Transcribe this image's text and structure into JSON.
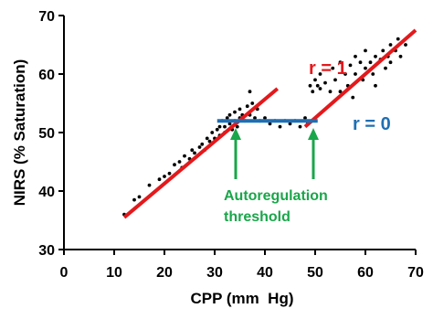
{
  "chart_data": {
    "type": "scatter",
    "x_label": "CPP (mm  Hg)",
    "y_label": "NIRS (% Saturation)",
    "xlim": [
      0,
      70
    ],
    "ylim": [
      30,
      70
    ],
    "xticks": [
      0,
      10,
      20,
      30,
      40,
      50,
      60,
      70
    ],
    "yticks": [
      30,
      40,
      50,
      60,
      70
    ],
    "grid": false,
    "series": [
      {
        "type": "scatter",
        "color": "#000000",
        "x": [
          12,
          14,
          15,
          17,
          19,
          20,
          21,
          22,
          23,
          23.5,
          24,
          25,
          25.5,
          26,
          27,
          27.5,
          28,
          28.5,
          29,
          29.5,
          30,
          30.5,
          31,
          31,
          31.5,
          32,
          32,
          32.5,
          33,
          33,
          33.5,
          34,
          34,
          34.5,
          35,
          35,
          35.5,
          36,
          36.5,
          37,
          37,
          37.5,
          38,
          38.5,
          39,
          40,
          41,
          42,
          43,
          44,
          45,
          46,
          47,
          48,
          48.5,
          49,
          49.5,
          50,
          50.5,
          51,
          51,
          52,
          53,
          53.5,
          54,
          55,
          55,
          56,
          56.5,
          57,
          57.5,
          58,
          58,
          59,
          59.5,
          60,
          60,
          61,
          61.5,
          62,
          62,
          63,
          63.5,
          64,
          64.5,
          65,
          65,
          66,
          66.5,
          67,
          68
        ],
        "y": [
          36,
          38.5,
          39,
          41,
          42,
          42.5,
          43,
          44.5,
          45,
          44,
          46,
          45.5,
          47,
          46.5,
          47.5,
          48,
          47,
          49,
          48.5,
          50,
          49,
          50.5,
          51,
          49.5,
          52,
          51,
          50,
          52.5,
          51.5,
          53,
          50.5,
          52,
          53.5,
          51,
          52.5,
          54,
          53,
          52,
          54.5,
          53,
          57,
          55,
          52.5,
          54,
          52,
          52.5,
          51.5,
          52,
          51,
          52,
          51.5,
          52,
          51,
          52.5,
          51.5,
          58,
          57,
          59,
          58,
          57.5,
          60,
          58.5,
          57,
          61,
          59,
          57,
          62,
          60,
          58,
          61.5,
          56,
          60,
          63,
          62,
          59,
          61,
          64,
          62,
          60,
          63,
          58,
          62.5,
          64,
          61,
          63,
          62,
          65,
          64,
          66,
          63,
          65
        ]
      },
      {
        "type": "line",
        "color": "#e3191c",
        "x": [
          12,
          42.5
        ],
        "y": [
          35.5,
          57.5
        ]
      },
      {
        "type": "line",
        "color": "#e3191c",
        "x": [
          48,
          70
        ],
        "y": [
          51,
          67.5
        ]
      },
      {
        "type": "line",
        "color": "#1f6fb4",
        "x": [
          30.5,
          50.5
        ],
        "y": [
          52,
          52
        ]
      }
    ],
    "annotations": [
      {
        "text": "r = 1",
        "color": "#e3191c"
      },
      {
        "text": "r = 0",
        "color": "#1f6fb4"
      },
      {
        "text": "Autoregulation",
        "color": "#1aa64a"
      },
      {
        "text": "threshold",
        "color": "#1aa64a"
      }
    ]
  }
}
